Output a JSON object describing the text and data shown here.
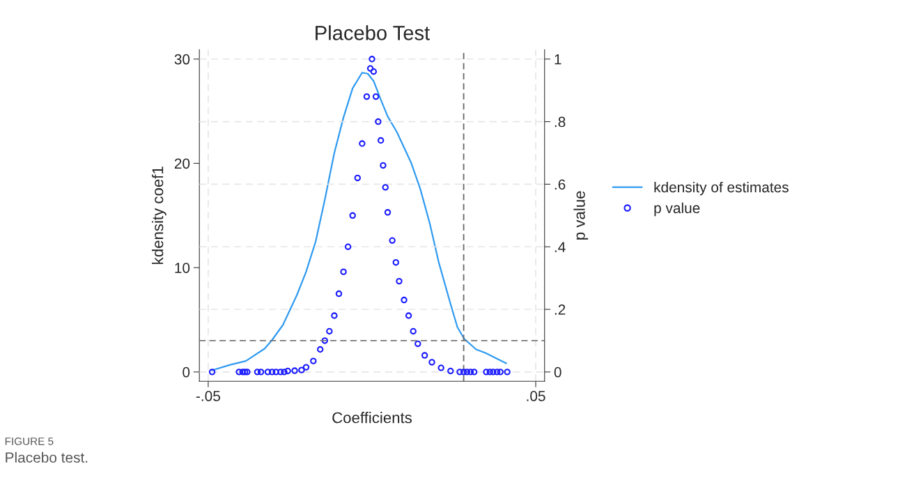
{
  "chart_data": {
    "type": "line",
    "title": "Placebo Test",
    "xlabel": "Coefficients",
    "ylabel": "kdensity coef1",
    "y2label": "p value",
    "xlim": [
      -0.0527,
      0.0527
    ],
    "xticks": [
      {
        "value": -0.05,
        "label": "-.05"
      },
      {
        "value": 0.05,
        "label": ".05"
      }
    ],
    "ylim": [
      -0.9,
      30.9
    ],
    "yticks": [
      0,
      10,
      20,
      30
    ],
    "y2lim": [
      -0.03,
      1.03
    ],
    "y2ticks": [
      0,
      {
        "value": 0.2,
        "label": ".2"
      },
      {
        "value": 0.4,
        "label": ".4"
      },
      {
        "value": 0.6,
        "label": ".6"
      },
      {
        "value": 0.8,
        "label": ".8"
      },
      1
    ],
    "grid": true,
    "legend": "right",
    "ref_lines": [
      {
        "axis": "x",
        "value": 0.028,
        "color": "#666666",
        "line_style": "dashed"
      },
      {
        "axis": "y2",
        "value": 0.1,
        "color": "#777777",
        "line_style": "dashed"
      }
    ],
    "series": [
      {
        "name": "kdensity of estimates",
        "color": "#2f9af0",
        "line_style": "solid",
        "marker": "none",
        "x": [
          -0.0488,
          -0.0435,
          -0.0385,
          -0.0328,
          -0.0307,
          -0.0272,
          -0.0229,
          -0.0201,
          -0.0172,
          -0.0144,
          -0.0115,
          -0.0087,
          -0.0059,
          -0.003,
          -0.0013,
          0.0005,
          0.0027,
          0.0048,
          0.0076,
          0.0119,
          0.0147,
          0.0176,
          0.0204,
          0.024,
          0.0261,
          0.0282,
          0.0318,
          0.0346,
          0.041
        ],
        "values": [
          0.16,
          0.67,
          1.05,
          2.23,
          2.98,
          4.5,
          7.39,
          9.62,
          12.5,
          16.5,
          21.0,
          24.4,
          27.2,
          28.7,
          28.6,
          27.9,
          26.1,
          24.5,
          23.0,
          20.1,
          17.6,
          14.3,
          10.5,
          6.5,
          4.28,
          3.16,
          2.16,
          1.83,
          0.82
        ]
      },
      {
        "name": "p value",
        "type": "scatter",
        "axis": "y2",
        "color": "#1a1aff",
        "marker": "circle",
        "x": [
          -0.0488,
          -0.0406,
          -0.0395,
          -0.0388,
          -0.0381,
          -0.035,
          -0.0339,
          -0.0318,
          -0.0305,
          -0.0293,
          -0.0279,
          -0.0268,
          -0.0257,
          -0.0236,
          -0.0215,
          -0.0201,
          -0.0179,
          -0.0158,
          -0.0144,
          -0.013,
          -0.0115,
          -0.0101,
          -0.0087,
          -0.0073,
          -0.0059,
          -0.0044,
          -0.003,
          -0.0016,
          -0.0005,
          0.0,
          0.0005,
          0.0012,
          0.0019,
          0.0027,
          0.0034,
          0.0041,
          0.0048,
          0.0062,
          0.0073,
          0.0083,
          0.0098,
          0.0112,
          0.0126,
          0.014,
          0.0161,
          0.0183,
          0.0211,
          0.024,
          0.0268,
          0.028,
          0.029,
          0.0301,
          0.0312,
          0.0349,
          0.036,
          0.037,
          0.0382,
          0.0392,
          0.0413
        ],
        "values": [
          0,
          0,
          0,
          0,
          0,
          0,
          0,
          0,
          0,
          0,
          0,
          0,
          0.003,
          0.004,
          0.006,
          0.015,
          0.035,
          0.072,
          0.1,
          0.13,
          0.18,
          0.25,
          0.32,
          0.4,
          0.5,
          0.62,
          0.73,
          0.88,
          0.97,
          1.0,
          0.96,
          0.88,
          0.8,
          0.74,
          0.66,
          0.59,
          0.51,
          0.42,
          0.35,
          0.29,
          0.23,
          0.18,
          0.13,
          0.09,
          0.053,
          0.031,
          0.013,
          0.003,
          0,
          0,
          0,
          0,
          0,
          0,
          0,
          0,
          0,
          0,
          0
        ]
      }
    ],
    "annotations": [
      "FIGURE 5",
      "Placebo test."
    ]
  }
}
